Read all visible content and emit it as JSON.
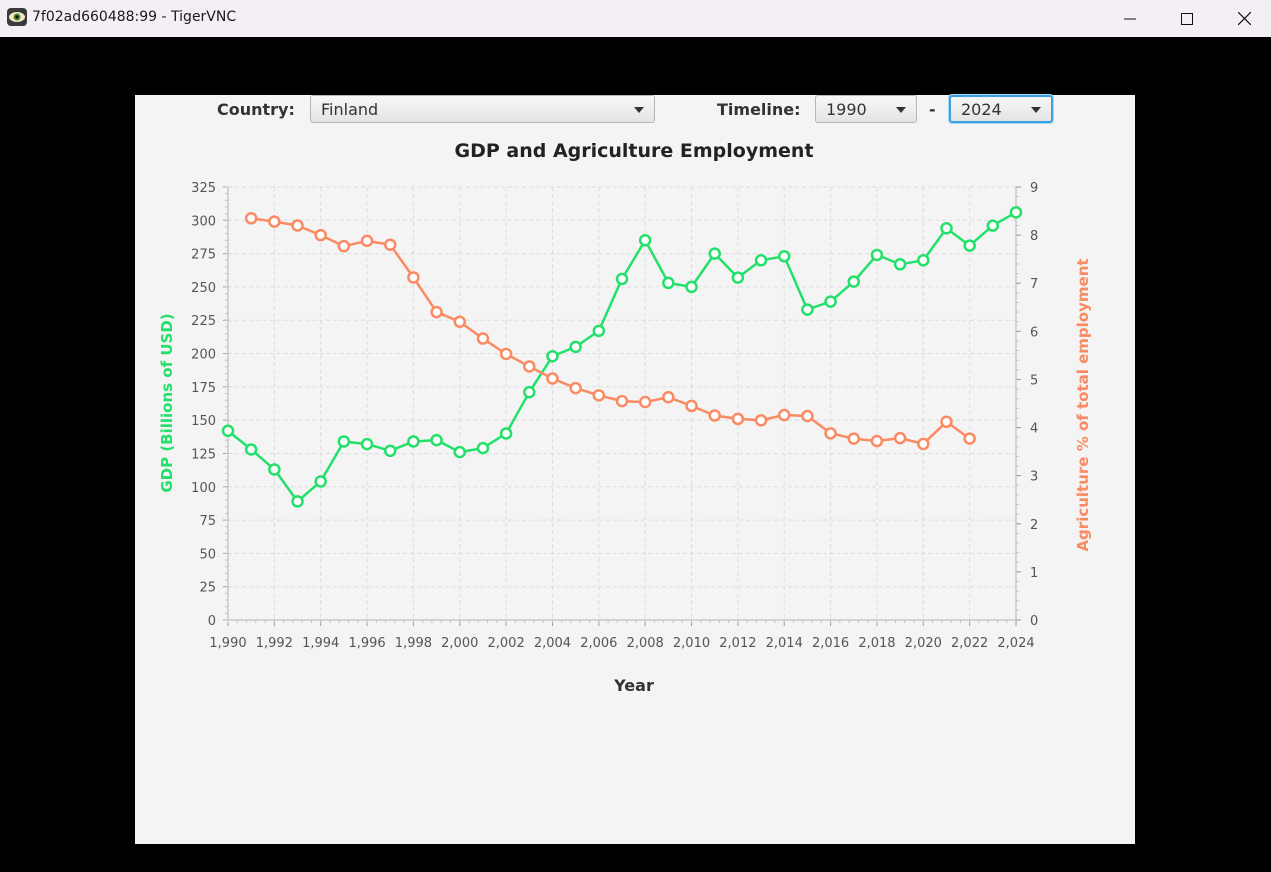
{
  "window": {
    "title": "7f02ad660488:99 - TigerVNC",
    "icons": [
      "app-icon",
      "minimize-icon",
      "maximize-icon",
      "close-icon"
    ]
  },
  "controls": {
    "country_label": "Country:",
    "country_value": "Finland",
    "timeline_label": "Timeline:",
    "timeline_start": "1990",
    "timeline_separator": "-",
    "timeline_end": "2024"
  },
  "colors": {
    "gdp": "#22e06a",
    "agri": "#fa8a62",
    "window_bar": "#f3eff5",
    "panel": "#f4f4f4",
    "focus": "#3ba1e0"
  },
  "chart_data": {
    "type": "line",
    "title": "GDP and Agriculture Employment",
    "xlabel": "Year",
    "ylabel": "GDP (Billions of USD)",
    "y2label": "Agriculture % of total employment",
    "xlim": [
      1990,
      2024
    ],
    "ylim": [
      0,
      325
    ],
    "y2lim": [
      0,
      9
    ],
    "x_ticks": [
      "1,990",
      "1,992",
      "1,994",
      "1,996",
      "1,998",
      "2,000",
      "2,002",
      "2,004",
      "2,006",
      "2,008",
      "2,010",
      "2,012",
      "2,014",
      "2,016",
      "2,018",
      "2,020",
      "2,022",
      "2,024"
    ],
    "y_ticks": [
      "0",
      "25",
      "50",
      "75",
      "100",
      "125",
      "150",
      "175",
      "200",
      "225",
      "250",
      "275",
      "300",
      "325"
    ],
    "y2_ticks": [
      "0",
      "1",
      "2",
      "3",
      "4",
      "5",
      "6",
      "7",
      "8",
      "9"
    ],
    "grid": true,
    "series": [
      {
        "axis": "left",
        "x": [
          1990,
          1991,
          1992,
          1993,
          1994,
          1995,
          1996,
          1997,
          1998,
          1999,
          2000,
          2001,
          2002,
          2003,
          2004,
          2005,
          2006,
          2007,
          2008,
          2009,
          2010,
          2011,
          2012,
          2013,
          2014,
          2015,
          2016,
          2017,
          2018,
          2019,
          2020,
          2021,
          2022,
          2023,
          2024
        ],
        "values": [
          142,
          128,
          113,
          89,
          104,
          134,
          132,
          127,
          134,
          135,
          126,
          129,
          140,
          171,
          198,
          205,
          217,
          256,
          285,
          253,
          250,
          275,
          257,
          270,
          273,
          233,
          239,
          254,
          274,
          267,
          270,
          294,
          281,
          296,
          306
        ]
      },
      {
        "axis": "right",
        "x": [
          1991,
          1992,
          1993,
          1994,
          1995,
          1996,
          1997,
          1998,
          1999,
          2000,
          2001,
          2002,
          2003,
          2004,
          2005,
          2006,
          2007,
          2008,
          2009,
          2010,
          2011,
          2012,
          2013,
          2014,
          2015,
          2016,
          2017,
          2018,
          2019,
          2020,
          2021,
          2022
        ],
        "values": [
          8.35,
          8.28,
          8.2,
          8.0,
          7.77,
          7.88,
          7.8,
          7.12,
          6.4,
          6.2,
          5.85,
          5.53,
          5.27,
          5.02,
          4.82,
          4.67,
          4.55,
          4.53,
          4.63,
          4.45,
          4.25,
          4.18,
          4.15,
          4.26,
          4.24,
          3.88,
          3.77,
          3.72,
          3.78,
          3.66,
          4.12,
          3.77
        ]
      }
    ]
  }
}
